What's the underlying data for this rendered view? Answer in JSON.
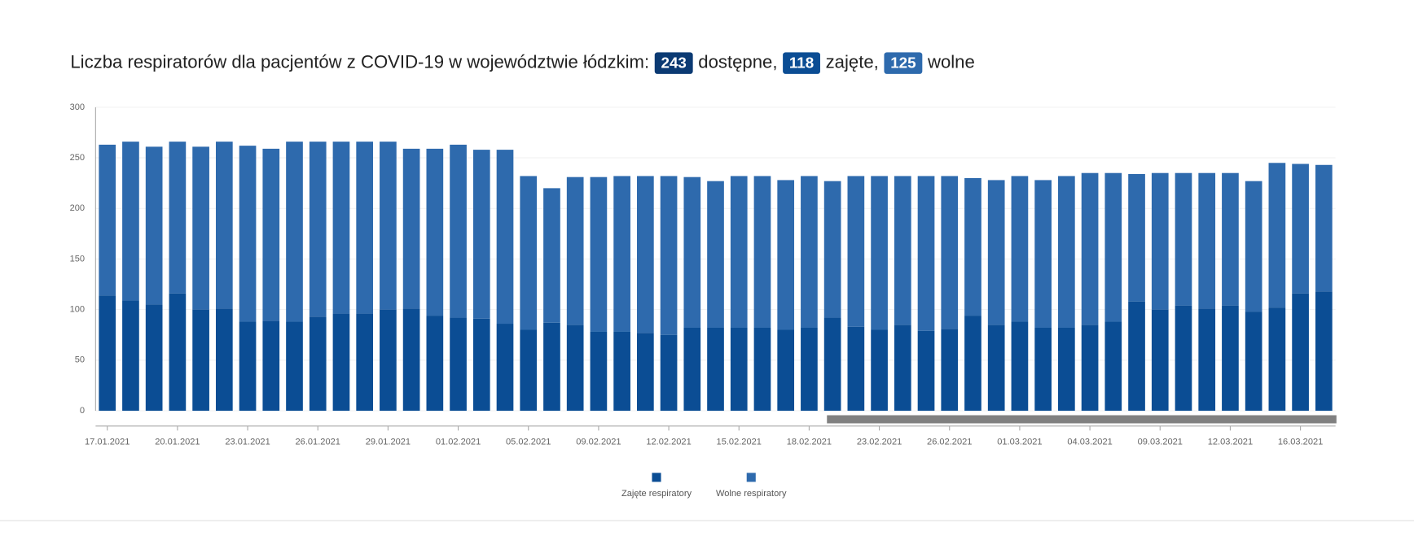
{
  "chart_data": {
    "type": "stacked_bar",
    "title": "Liczba respiratorów dla pacjentów z COVID-19 w województwie łódzkim:",
    "summary": [
      {
        "value": 243,
        "text": "dostępne,",
        "color": "#0b3a73"
      },
      {
        "value": 118,
        "text": "zajęte,",
        "color": "#0b4d94"
      },
      {
        "value": 125,
        "text": "wolne",
        "color": "#2e6aad"
      }
    ],
    "categories": [
      "17.01.2021",
      null,
      null,
      "20.01.2021",
      null,
      null,
      "23.01.2021",
      null,
      null,
      "26.01.2021",
      null,
      null,
      "29.01.2021",
      null,
      null,
      "01.02.2021",
      null,
      null,
      "05.02.2021",
      null,
      null,
      "09.02.2021",
      null,
      null,
      "12.02.2021",
      null,
      null,
      "15.02.2021",
      null,
      null,
      "18.02.2021",
      null,
      null,
      "23.02.2021",
      null,
      null,
      "26.02.2021",
      null,
      null,
      "01.03.2021",
      null,
      null,
      "04.03.2021",
      null,
      null,
      "09.03.2021",
      null,
      null,
      "12.03.2021",
      null,
      null,
      "16.03.2021",
      null
    ],
    "series": [
      {
        "name": "Zajęte respiratory",
        "color": "#0b4d94",
        "values": [
          114,
          109,
          105,
          116,
          100,
          101,
          88,
          89,
          88,
          93,
          96,
          96,
          100,
          101,
          94,
          92,
          91,
          86,
          80,
          87,
          85,
          78,
          78,
          77,
          75,
          82,
          82,
          82,
          82,
          80,
          82,
          92,
          83,
          80,
          85,
          79,
          81,
          94,
          85,
          88,
          82,
          82,
          85,
          88,
          108,
          100,
          104,
          101,
          104,
          98,
          102,
          116,
          118
        ]
      },
      {
        "name": "Wolne respiratory",
        "color": "#2e6aad",
        "values": [
          149,
          157,
          156,
          150,
          161,
          165,
          174,
          170,
          178,
          173,
          170,
          170,
          166,
          158,
          165,
          171,
          167,
          172,
          152,
          133,
          146,
          153,
          154,
          155,
          157,
          149,
          145,
          150,
          150,
          148,
          150,
          135,
          149,
          152,
          147,
          153,
          151,
          136,
          143,
          144,
          146,
          150,
          150,
          147,
          126,
          135,
          131,
          134,
          131,
          129,
          143,
          128,
          125
        ]
      }
    ],
    "ylim": [
      0,
      300
    ],
    "yticks": [
      0,
      50,
      100,
      150,
      200,
      250,
      300
    ],
    "grid": true,
    "legend": "bottom"
  }
}
